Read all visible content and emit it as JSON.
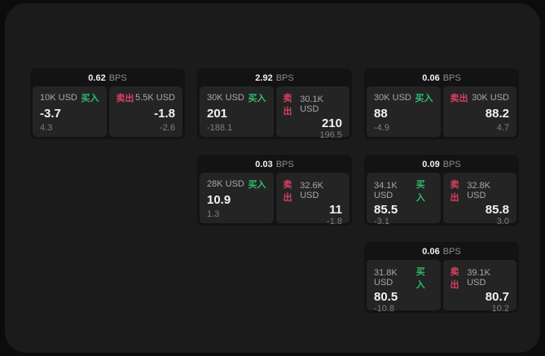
{
  "theme": {
    "outer_bg": "#0c0c0c",
    "window_bg": "#1b1b1b",
    "card_bg": "#131313",
    "panel_bg": "#242424",
    "buy_green": "#2ebd6e",
    "sell_red": "#d94060"
  },
  "labels": {
    "bps_unit": "BPS",
    "buy": "买入",
    "sell": "卖出"
  },
  "cards": [
    {
      "bps": "0.62",
      "buy": {
        "size": "10K USD",
        "price": "-3.7",
        "delta": "4.3"
      },
      "sell": {
        "size": "5.5K USD",
        "price": "-1.8",
        "delta": "-2.6"
      }
    },
    {
      "bps": "2.92",
      "buy": {
        "size": "30K USD",
        "price": "201",
        "delta": "-188.1"
      },
      "sell": {
        "size": "30.1K USD",
        "price": "210",
        "delta": "196.5"
      }
    },
    {
      "bps": "0.06",
      "buy": {
        "size": "30K USD",
        "price": "88",
        "delta": "-4.9"
      },
      "sell": {
        "size": "30K USD",
        "price": "88.2",
        "delta": "4.7"
      }
    },
    {
      "bps": "0.03",
      "buy": {
        "size": "28K USD",
        "price": "10.9",
        "delta": "1.3"
      },
      "sell": {
        "size": "32.6K USD",
        "price": "11",
        "delta": "-1.8"
      }
    },
    {
      "bps": "0.09",
      "buy": {
        "size": "34.1K USD",
        "price": "85.5",
        "delta": "-3.1"
      },
      "sell": {
        "size": "32.8K USD",
        "price": "85.8",
        "delta": "3.0"
      }
    },
    {
      "bps": "0.06",
      "buy": {
        "size": "31.8K USD",
        "price": "80.5",
        "delta": "-10.8"
      },
      "sell": {
        "size": "39.1K USD",
        "price": "80.7",
        "delta": "10.2"
      }
    }
  ]
}
